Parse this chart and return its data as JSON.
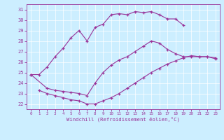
{
  "xlabel": "Windchill (Refroidissement éolien,°C)",
  "background_color": "#cceeff",
  "line_color": "#993399",
  "xlim": [
    -0.5,
    23.5
  ],
  "ylim": [
    21.5,
    31.5
  ],
  "xticks": [
    0,
    1,
    2,
    3,
    4,
    5,
    6,
    7,
    8,
    9,
    10,
    11,
    12,
    13,
    14,
    15,
    16,
    17,
    18,
    19,
    20,
    21,
    22,
    23
  ],
  "yticks": [
    22,
    23,
    24,
    25,
    26,
    27,
    28,
    29,
    30,
    31
  ],
  "line1_x": [
    0,
    1,
    2,
    3,
    4,
    5,
    6,
    7,
    8,
    9,
    10,
    11,
    12,
    13,
    14,
    15,
    16,
    17,
    18,
    19
  ],
  "line1_y": [
    24.8,
    24.8,
    25.5,
    26.5,
    27.3,
    28.3,
    29.0,
    28.0,
    29.3,
    29.6,
    30.5,
    30.6,
    30.5,
    30.8,
    30.7,
    30.8,
    30.5,
    30.1,
    30.1,
    29.5
  ],
  "line2_x": [
    1,
    2,
    3,
    4,
    5,
    6,
    7,
    8,
    9,
    10,
    11,
    12,
    13,
    14,
    15,
    16,
    17,
    18,
    19,
    20,
    21,
    22,
    23
  ],
  "line2_y": [
    23.3,
    23.0,
    22.8,
    22.6,
    22.4,
    22.3,
    22.0,
    22.0,
    22.3,
    22.6,
    23.0,
    23.5,
    24.0,
    24.5,
    25.0,
    25.4,
    25.8,
    26.1,
    26.4,
    26.6,
    26.5,
    26.5,
    26.3
  ],
  "line3_x": [
    0,
    2,
    3,
    4,
    5,
    6,
    7,
    8,
    9,
    10,
    11,
    12,
    13,
    14,
    15,
    16,
    17,
    18,
    19,
    20,
    21,
    22,
    23
  ],
  "line3_y": [
    24.8,
    23.5,
    23.3,
    23.2,
    23.1,
    23.0,
    22.8,
    24.0,
    25.0,
    25.7,
    26.2,
    26.5,
    27.0,
    27.5,
    28.0,
    27.8,
    27.2,
    26.8,
    26.5,
    26.5,
    26.5,
    26.5,
    26.4
  ]
}
